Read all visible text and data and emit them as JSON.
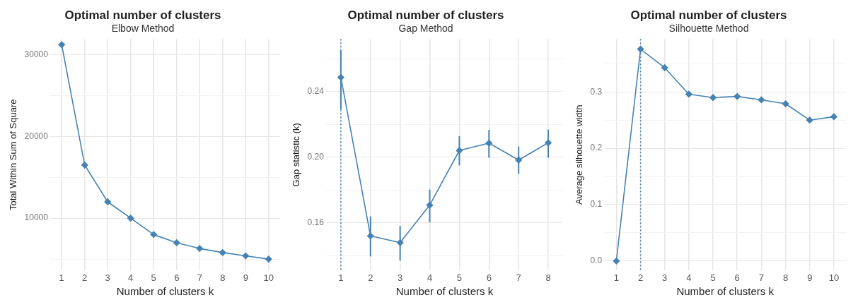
{
  "chart_data": [
    {
      "type": "line",
      "title": "Optimal number of clusters",
      "subtitle": "Elbow Method",
      "xlabel": "Number of clusters k",
      "ylabel": "Total Within Sum of Square",
      "x": [
        1,
        2,
        3,
        4,
        5,
        6,
        7,
        8,
        9,
        10
      ],
      "series": [
        {
          "color": "#4682b4",
          "values": [
            31200,
            16500,
            12000,
            10000,
            8000,
            7000,
            6300,
            5800,
            5400,
            5000
          ]
        }
      ],
      "xlim": [
        0.5,
        10.5
      ],
      "xticks": [
        1,
        2,
        3,
        4,
        5,
        6,
        7,
        8,
        9,
        10
      ],
      "ylim": [
        3600,
        31900
      ],
      "yticks": [
        {
          "value": 5000,
          "label": null
        },
        10000,
        {
          "value": 15000,
          "label": null
        },
        20000,
        {
          "value": 25000,
          "label": null
        },
        30000
      ],
      "grid": true,
      "legend": false,
      "marker": "diamond",
      "line_style": "solid"
    },
    {
      "type": "line",
      "title": "Optimal number of clusters",
      "subtitle": "Gap Method",
      "xlabel": "Number of clusters k",
      "ylabel": "Gap statistic (k)",
      "x": [
        1,
        2,
        3,
        4,
        5,
        6,
        7,
        8
      ],
      "series": [
        {
          "color": "#4682b4",
          "values": [
            0.2486,
            0.1521,
            0.148,
            0.1709,
            0.2041,
            0.2086,
            0.1983,
            0.2088
          ],
          "errors": [
            [
              0.2292,
              0.2651
            ],
            [
              0.1396,
              0.164
            ],
            [
              0.137,
              0.1582
            ],
            [
              0.1604,
              0.1803
            ],
            [
              0.195,
              0.2128
            ],
            [
              0.1997,
              0.2166
            ],
            [
              0.1898,
              0.2065
            ],
            [
              0.1997,
              0.2168
            ]
          ]
        }
      ],
      "xlim": [
        0.5,
        8.5
      ],
      "xticks": [
        1,
        2,
        3,
        4,
        5,
        6,
        7,
        8
      ],
      "ylim": [
        0.131,
        0.272
      ],
      "yticks": [
        {
          "value": 0.14,
          "label": null
        },
        0.16,
        {
          "value": 0.18,
          "label": null
        },
        {
          "value": 0.2,
          "label": "0.20"
        },
        {
          "value": 0.22,
          "label": null
        },
        0.24,
        {
          "value": 0.26,
          "label": null
        }
      ],
      "ref_lines": [
        {
          "axis": "x",
          "value": 1,
          "line_style": "dotted",
          "color": "#4682b4"
        }
      ],
      "grid": true,
      "legend": false,
      "marker": "diamond",
      "line_style": "solid"
    },
    {
      "type": "line",
      "title": "Optimal number of clusters",
      "subtitle": "Silhouette Method",
      "xlabel": "Number of clusters k",
      "ylabel": "Average silhouette width",
      "x": [
        1,
        2,
        3,
        4,
        5,
        6,
        7,
        8,
        9,
        10
      ],
      "series": [
        {
          "color": "#4682b4",
          "values": [
            0,
            0.376,
            0.343,
            0.296,
            0.29,
            0.292,
            0.286,
            0.279,
            0.25,
            0.256
          ]
        }
      ],
      "xlim": [
        0.5,
        10.5
      ],
      "xticks": [
        1,
        2,
        3,
        4,
        5,
        6,
        7,
        8,
        9,
        10
      ],
      "ylim": [
        -0.017,
        0.394
      ],
      "yticks": [
        {
          "value": 0,
          "label": "0.0"
        },
        {
          "value": 0.05,
          "label": null
        },
        0.1,
        {
          "value": 0.15,
          "label": null
        },
        0.2,
        {
          "value": 0.25,
          "label": null
        },
        0.3,
        {
          "value": 0.35,
          "label": null
        }
      ],
      "ref_lines": [
        {
          "axis": "x",
          "value": 2,
          "line_style": "dotted",
          "color": "#4682b4"
        }
      ],
      "grid": true,
      "legend": false,
      "marker": "diamond",
      "line_style": "solid"
    }
  ]
}
